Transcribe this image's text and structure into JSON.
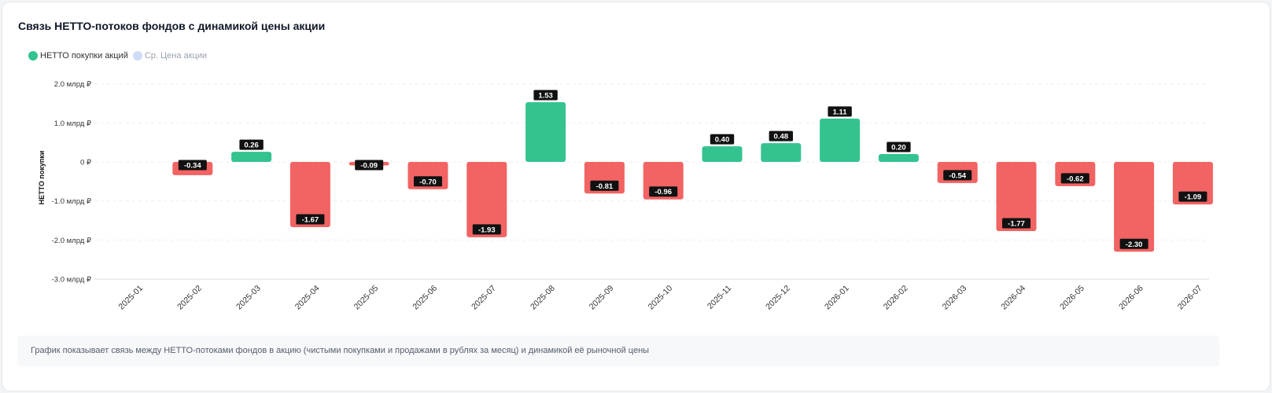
{
  "card": {
    "title": "Связь НЕТТО-потоков фондов с динамикой цены акции",
    "footnote": "График показывает связь между НЕТТО-потоками фондов в акцию (чистыми покупками и продажами в рублях за месяц) и динамикой её рыночной цены"
  },
  "legend": [
    {
      "label": "НЕТТО покупки акций",
      "color": "#34c38f",
      "active": true
    },
    {
      "label": "Ср. Цена акции",
      "color": "#cfdcf7",
      "active": false
    }
  ],
  "colors": {
    "positive": "#34c38f",
    "negative": "#f26363",
    "label_bg": "#111111",
    "label_text": "#ffffff",
    "grid": "#eceef1",
    "axis": "#d9dce1"
  },
  "chart_data": {
    "type": "bar",
    "title": "Связь НЕТТО-потоков фондов с динамикой цены акции",
    "ylabel": "НЕТТО покупки",
    "xlabel": "",
    "ylim": [
      -3.0,
      2.0
    ],
    "yticks": [
      2.0,
      1.0,
      0,
      -1.0,
      -2.0,
      -3.0
    ],
    "ytick_labels": [
      "2.0 млрд ₽",
      "1.0 млрд ₽",
      "0 ₽",
      "-1.0 млрд ₽",
      "-2.0 млрд ₽",
      "-3.0 млрд ₽"
    ],
    "grid": true,
    "legend_position": "top-left",
    "categories": [
      "2025-01",
      "2025-02",
      "2025-03",
      "2025-04",
      "2025-05",
      "2025-06",
      "2025-07",
      "2025-08",
      "2025-09",
      "2025-10",
      "2025-11",
      "2025-12",
      "2026-01",
      "2026-02",
      "2026-03",
      "2026-04",
      "2026-05",
      "2026-06",
      "2026-07"
    ],
    "series": [
      {
        "name": "НЕТТО покупки акций",
        "unit": "млрд ₽",
        "values": [
          null,
          -0.34,
          0.26,
          -1.67,
          -0.09,
          -0.7,
          -1.93,
          1.53,
          -0.81,
          -0.96,
          0.4,
          0.48,
          1.11,
          0.2,
          -0.54,
          -1.77,
          -0.62,
          -2.3,
          -1.09
        ],
        "labels": [
          "",
          "-0.34",
          "0.26",
          "-1.67",
          "-0.09",
          "-0.70",
          "-1.93",
          "1.53",
          "-0.81",
          "-0.96",
          "0.40",
          "0.48",
          "1.11",
          "0.20",
          "-0.54",
          "-1.77",
          "-0.62",
          "-2.30",
          "-1.09"
        ]
      }
    ]
  }
}
